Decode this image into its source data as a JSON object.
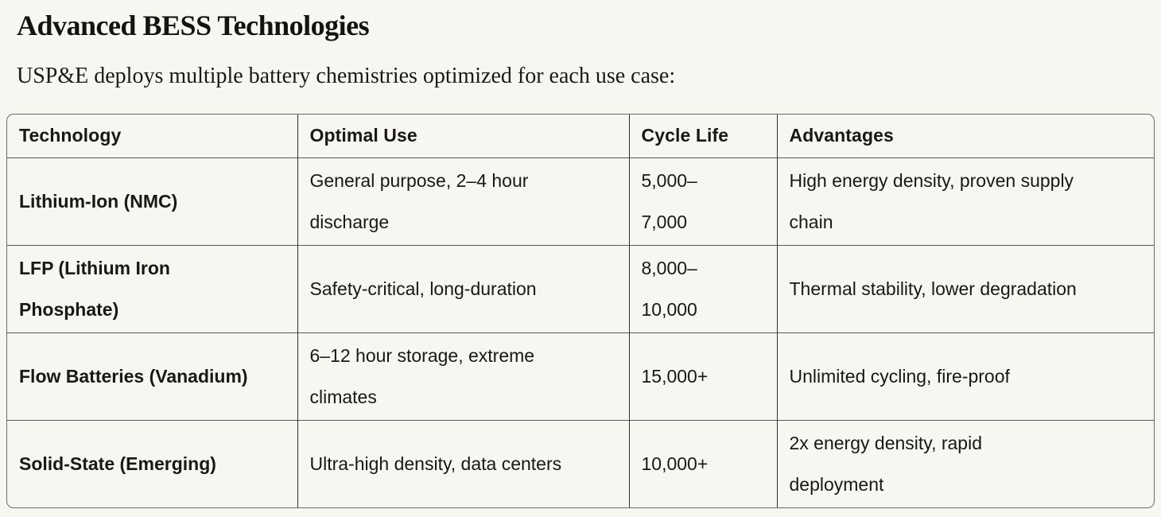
{
  "page": {
    "heading": "Advanced BESS Technologies",
    "intro": "USP&E deploys multiple battery chemistries optimized for each use case:"
  },
  "colors": {
    "page_background": "#f7f6f1",
    "text": "#1a1814",
    "table_outer_border": "#6b6b6b",
    "table_column_border": "#2f2f2f",
    "table_row_border": "#5a5a5a"
  },
  "table": {
    "headers": [
      "Technology",
      "Optimal Use",
      "Cycle Life",
      "Advantages"
    ],
    "rows": [
      {
        "technology": "Lithium-Ion (NMC)",
        "optimal_use": "General purpose, 2–4 hour discharge",
        "cycle_life": "5,000–7,000",
        "advantages": "High energy density, proven supply chain"
      },
      {
        "technology": "LFP (Lithium Iron Phosphate)",
        "optimal_use": "Safety-critical, long-duration",
        "cycle_life": "8,000–10,000",
        "advantages": "Thermal stability, lower degradation"
      },
      {
        "technology": "Flow Batteries (Vanadium)",
        "optimal_use": "6–12 hour storage, extreme climates",
        "cycle_life": "15,000+",
        "advantages": "Unlimited cycling, fire-proof"
      },
      {
        "technology": "Solid-State (Emerging)",
        "optimal_use": "Ultra-high density, data centers",
        "cycle_life": "10,000+",
        "advantages": "2x energy density, rapid deployment"
      }
    ]
  }
}
